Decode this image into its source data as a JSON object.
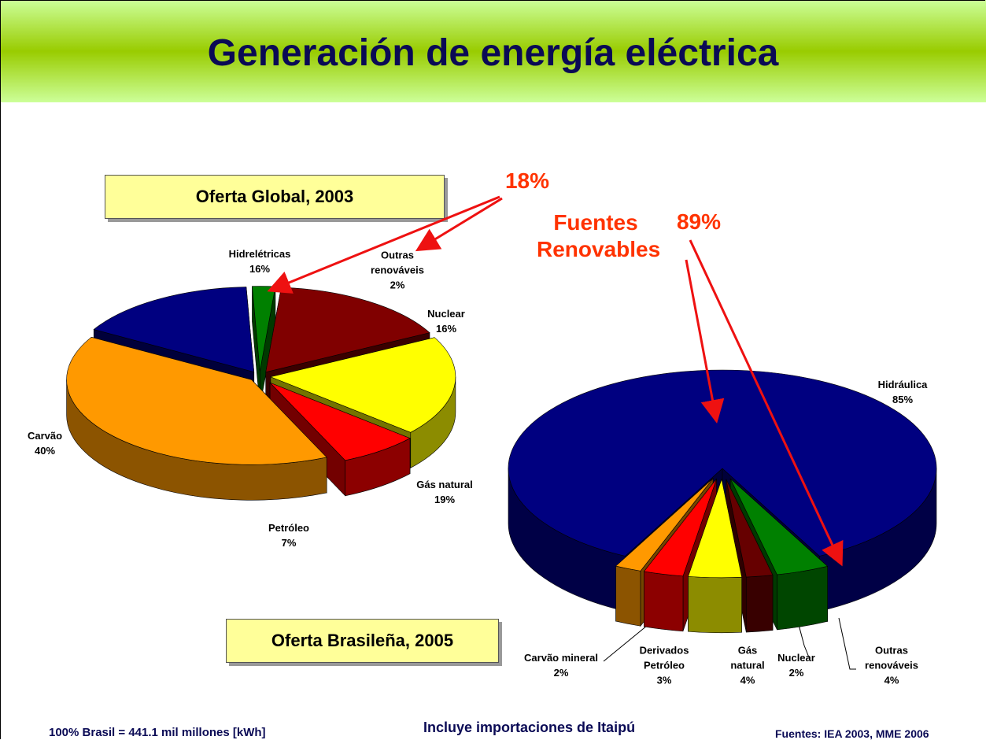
{
  "title": "Generación de energía eléctrica",
  "annotations": {
    "global_renewable": "18%",
    "renewable_label": "Fuentes Renovables",
    "brazil_renewable": "89%"
  },
  "footer": {
    "total": "100% Brasil = 441.1 mil millones [kWh]",
    "note": "Incluye importaciones de Itaipú",
    "sources": "Fuentes: IEA 2003,  MME 2006"
  },
  "chart_data": [
    {
      "type": "pie",
      "title": "Oferta Global, 2003",
      "categories": [
        "Hidrelétricas",
        "Outras renováveis",
        "Nuclear",
        "Gás natural",
        "Petróleo",
        "Carvão"
      ],
      "values": [
        16,
        2,
        16,
        19,
        7,
        40
      ],
      "value_labels": [
        "16%",
        "2%",
        "16%",
        "19%",
        "7%",
        "40%"
      ],
      "colors": [
        "#000080",
        "#008000",
        "#800000",
        "#ffff00",
        "#ff0000",
        "#ff9900"
      ]
    },
    {
      "type": "pie",
      "title": "Oferta Brasileña, 2005",
      "categories": [
        "Hidráulica",
        "Outras renováveis",
        "Nuclear",
        "Gás natural",
        "Derivados Petróleo",
        "Carvão mineral"
      ],
      "values": [
        85,
        4,
        2,
        4,
        3,
        2
      ],
      "value_labels": [
        "85%",
        "4%",
        "2%",
        "4%",
        "3%",
        "2%"
      ],
      "colors": [
        "#000080",
        "#008000",
        "#660000",
        "#ffff00",
        "#ff0000",
        "#ff9900"
      ]
    }
  ]
}
